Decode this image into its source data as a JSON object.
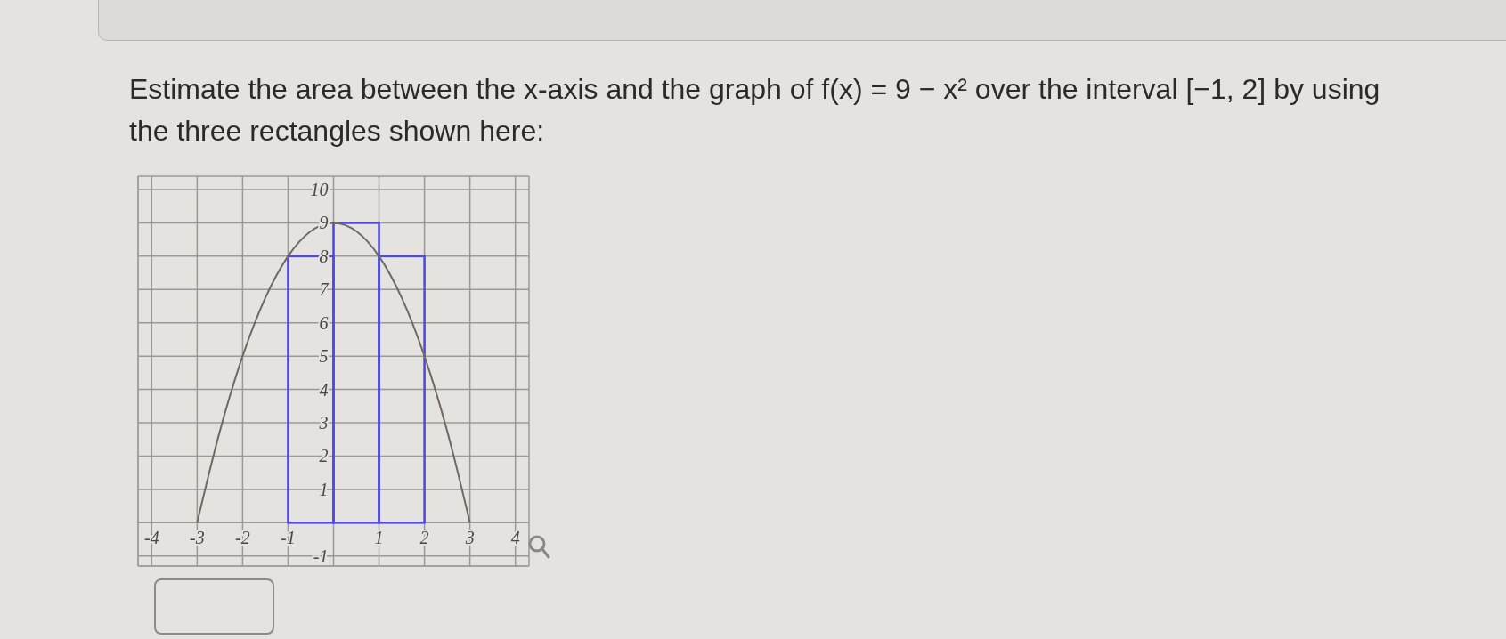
{
  "chart_data": {
    "type": "histogram",
    "title": "Estimate the area between the x-axis and the graph of f(x) = 9 − x² over the interval [−1, 2] by using the three rectangles shown here:",
    "series": [
      {
        "bins": [
          -1,
          0,
          1,
          2
        ],
        "values": [
          8,
          9,
          8
        ],
        "color": "#5048e0"
      },
      {
        "type": "line",
        "x": [
          -3,
          -2.5,
          -2,
          -1.5,
          -1,
          -0.5,
          0,
          0.5,
          1,
          1.5,
          2,
          2.5,
          3
        ],
        "values": [
          0,
          2.75,
          5,
          6.75,
          8,
          8.75,
          9,
          8.75,
          8,
          6.75,
          5,
          2.75,
          0
        ],
        "color": "#6f6963"
      }
    ],
    "xlim": [
      -4.3,
      4.3
    ],
    "ylim": [
      -1.3,
      10.4
    ],
    "xticks": [
      -4,
      -3,
      -2,
      -1,
      {
        "value": 0,
        "label": null
      },
      1,
      2,
      3,
      4
    ],
    "yticks": [
      -1,
      {
        "value": 0,
        "label": null
      },
      1,
      2,
      3,
      4,
      5,
      6,
      7,
      8,
      9,
      10
    ],
    "grid": true
  }
}
